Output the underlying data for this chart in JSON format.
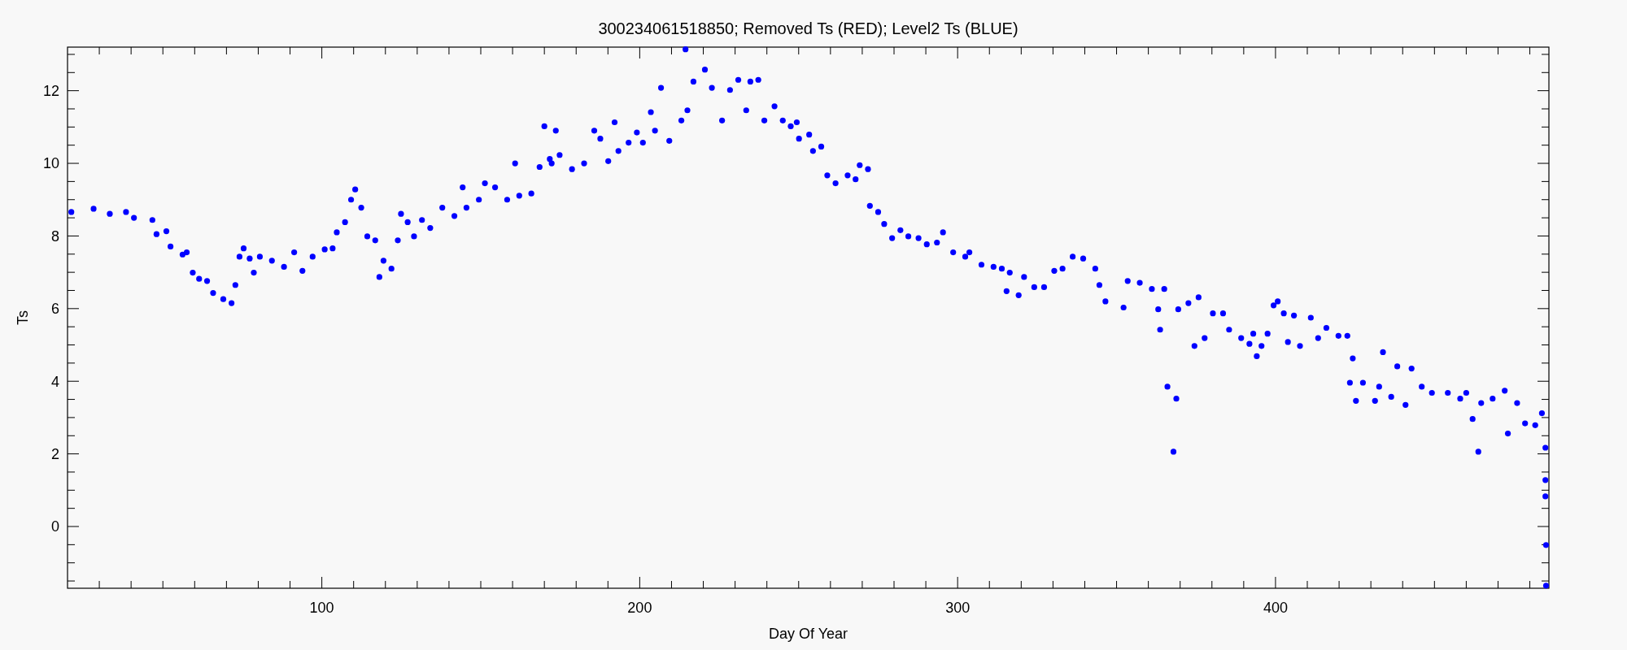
{
  "chart_data": {
    "type": "scatter",
    "title": "300234061518850; Removed Ts (RED); Level2 Ts (BLUE)",
    "xlabel": "Day Of Year",
    "ylabel": "Ts",
    "marker": "circle",
    "grid": false,
    "xlim": [
      20,
      486
    ],
    "ylim": [
      -1.7,
      13.2
    ],
    "xticks": [
      {
        "value": 30,
        "label": null
      },
      {
        "value": 40,
        "label": null
      },
      {
        "value": 50,
        "label": null
      },
      {
        "value": 60,
        "label": null
      },
      {
        "value": 70,
        "label": null
      },
      {
        "value": 80,
        "label": null
      },
      {
        "value": 90,
        "label": null
      },
      100,
      {
        "value": 110,
        "label": null
      },
      {
        "value": 120,
        "label": null
      },
      {
        "value": 130,
        "label": null
      },
      {
        "value": 140,
        "label": null
      },
      {
        "value": 150,
        "label": null
      },
      {
        "value": 160,
        "label": null
      },
      {
        "value": 170,
        "label": null
      },
      {
        "value": 180,
        "label": null
      },
      {
        "value": 190,
        "label": null
      },
      200,
      {
        "value": 210,
        "label": null
      },
      {
        "value": 220,
        "label": null
      },
      {
        "value": 230,
        "label": null
      },
      {
        "value": 240,
        "label": null
      },
      {
        "value": 250,
        "label": null
      },
      {
        "value": 260,
        "label": null
      },
      {
        "value": 270,
        "label": null
      },
      {
        "value": 280,
        "label": null
      },
      {
        "value": 290,
        "label": null
      },
      300,
      {
        "value": 310,
        "label": null
      },
      {
        "value": 320,
        "label": null
      },
      {
        "value": 330,
        "label": null
      },
      {
        "value": 340,
        "label": null
      },
      {
        "value": 350,
        "label": null
      },
      {
        "value": 360,
        "label": null
      },
      {
        "value": 370,
        "label": null
      },
      {
        "value": 380,
        "label": null
      },
      {
        "value": 390,
        "label": null
      },
      400,
      {
        "value": 410,
        "label": null
      },
      {
        "value": 420,
        "label": null
      },
      {
        "value": 430,
        "label": null
      },
      {
        "value": 440,
        "label": null
      },
      {
        "value": 450,
        "label": null
      },
      {
        "value": 460,
        "label": null
      },
      {
        "value": 470,
        "label": null
      },
      {
        "value": 480,
        "label": null
      }
    ],
    "yticks": [
      {
        "value": -1.5,
        "label": null
      },
      {
        "value": -1,
        "label": null
      },
      {
        "value": -0.5,
        "label": null
      },
      0,
      {
        "value": 0.5,
        "label": null
      },
      {
        "value": 1,
        "label": null
      },
      {
        "value": 1.5,
        "label": null
      },
      2,
      {
        "value": 2.5,
        "label": null
      },
      {
        "value": 3,
        "label": null
      },
      {
        "value": 3.5,
        "label": null
      },
      4,
      {
        "value": 4.5,
        "label": null
      },
      {
        "value": 5,
        "label": null
      },
      {
        "value": 5.5,
        "label": null
      },
      6,
      {
        "value": 6.5,
        "label": null
      },
      {
        "value": 7,
        "label": null
      },
      {
        "value": 7.5,
        "label": null
      },
      8,
      {
        "value": 8.5,
        "label": null
      },
      {
        "value": 9,
        "label": null
      },
      {
        "value": 9.5,
        "label": null
      },
      10,
      {
        "value": 10.5,
        "label": null
      },
      {
        "value": 11,
        "label": null
      },
      {
        "value": 11.5,
        "label": null
      },
      12,
      {
        "value": 12.5,
        "label": null
      },
      {
        "value": 13,
        "label": null
      }
    ],
    "series": [
      {
        "color": "#0000ff",
        "x": [
          21.2,
          28.2,
          33.3,
          38.4,
          40.9,
          46.7,
          48,
          51.1,
          52.4,
          56.2,
          57.5,
          59.4,
          61.4,
          63.9,
          65.8,
          69,
          71.6,
          72.8,
          74.1,
          75.4,
          77.3,
          78.6,
          80.5,
          84.3,
          88.1,
          91.3,
          93.9,
          97.1,
          100.9,
          103.4,
          104.7,
          107.3,
          109.2,
          110.5,
          112.4,
          114.3,
          116.8,
          118.1,
          119.4,
          121.9,
          123.9,
          124.9,
          127,
          129,
          131.5,
          134.1,
          137.9,
          141.7,
          144.3,
          145.5,
          149.4,
          151.3,
          154.5,
          158.3,
          160.8,
          162.1,
          165.9,
          168.5,
          170,
          171.7,
          172.3,
          173.6,
          174.8,
          178.7,
          182.5,
          185.7,
          187.6,
          190.1,
          192.1,
          193.3,
          196.5,
          199.1,
          201,
          203.5,
          204.8,
          206.7,
          209.3,
          213.1,
          214.4,
          215,
          216.9,
          220.5,
          222.7,
          225.9,
          228.4,
          231,
          233.5,
          234.8,
          237.3,
          239.2,
          242.4,
          245,
          247.5,
          249.4,
          250.1,
          253.3,
          254.5,
          257.1,
          259,
          261.6,
          265.4,
          267.9,
          269.2,
          271.8,
          272.4,
          275,
          276.9,
          279.4,
          282,
          284.5,
          287.7,
          290.3,
          293.5,
          295.4,
          298.6,
          302.4,
          303.7,
          307.5,
          311.3,
          313.9,
          315.4,
          316.4,
          319.2,
          320.9,
          324.1,
          327.2,
          330.4,
          333,
          336.2,
          339.5,
          343.3,
          344.6,
          346.5,
          352.2,
          353.5,
          357.3,
          361.1,
          363.1,
          363.7,
          365,
          366,
          367.9,
          368.8,
          369.4,
          372.6,
          374.5,
          375.8,
          377.7,
          380.3,
          383.5,
          385.4,
          389.2,
          391.8,
          393,
          394.1,
          395.6,
          397.5,
          399.4,
          400.7,
          402.6,
          403.9,
          405.8,
          407.7,
          411.1,
          413.4,
          416,
          419.8,
          422.6,
          423.4,
          424.3,
          425.3,
          427.5,
          431.3,
          432.6,
          433.8,
          436.4,
          438.3,
          440.9,
          442.8,
          446,
          449.2,
          454.2,
          458.1,
          460,
          462,
          463.8,
          464.7,
          468.3,
          472.1,
          473.1,
          476,
          478.5,
          481.7,
          483.8,
          484.9,
          484.9,
          484.9,
          485.1,
          485.1
        ],
        "values": [
          8.66,
          8.75,
          8.61,
          8.66,
          8.5,
          8.44,
          8.05,
          8.13,
          7.71,
          7.49,
          7.55,
          6.99,
          6.82,
          6.76,
          6.43,
          6.26,
          6.15,
          6.65,
          7.43,
          7.66,
          7.38,
          6.99,
          7.43,
          7.32,
          7.15,
          7.55,
          7.04,
          7.43,
          7.63,
          7.66,
          8.1,
          8.38,
          9.0,
          9.28,
          8.78,
          7.99,
          7.88,
          6.87,
          7.32,
          7.1,
          7.88,
          8.61,
          8.38,
          7.99,
          8.44,
          8.22,
          8.78,
          8.55,
          9.34,
          8.78,
          9.0,
          9.45,
          9.34,
          9.0,
          10.0,
          9.11,
          9.17,
          9.9,
          11.02,
          10.12,
          10.0,
          10.9,
          10.23,
          9.84,
          10.0,
          10.9,
          10.68,
          10.06,
          11.13,
          10.34,
          10.57,
          10.85,
          10.57,
          11.41,
          10.9,
          12.08,
          10.62,
          11.18,
          13.14,
          11.46,
          12.25,
          12.58,
          12.08,
          11.18,
          12.02,
          12.3,
          11.46,
          12.25,
          12.3,
          11.18,
          11.57,
          11.18,
          11.02,
          11.13,
          10.68,
          10.79,
          10.34,
          10.46,
          9.67,
          9.45,
          9.67,
          9.56,
          9.95,
          9.84,
          8.83,
          8.66,
          8.33,
          7.94,
          8.16,
          7.99,
          7.94,
          7.77,
          7.82,
          8.1,
          7.55,
          7.43,
          7.55,
          7.21,
          7.15,
          7.1,
          6.48,
          6.99,
          6.37,
          6.87,
          6.59,
          6.59,
          7.04,
          7.1,
          7.43,
          7.38,
          7.1,
          6.65,
          6.2,
          6.03,
          6.76,
          6.71,
          6.54,
          5.98,
          5.42,
          6.54,
          3.85,
          2.06,
          3.52,
          5.98,
          6.15,
          4.97,
          6.31,
          5.19,
          5.87,
          5.87,
          5.42,
          5.19,
          5.03,
          5.31,
          4.69,
          4.97,
          5.31,
          6.09,
          6.2,
          5.87,
          5.08,
          5.81,
          4.97,
          5.75,
          5.19,
          5.47,
          5.25,
          5.25,
          3.96,
          4.63,
          3.46,
          3.96,
          3.46,
          3.85,
          4.8,
          3.57,
          4.41,
          3.35,
          4.35,
          3.85,
          3.68,
          3.68,
          3.52,
          3.68,
          2.96,
          2.06,
          3.4,
          3.52,
          3.74,
          2.56,
          3.4,
          2.84,
          2.79,
          3.12,
          2.17,
          1.28,
          0.83,
          -0.51,
          -1.63
        ]
      }
    ]
  }
}
